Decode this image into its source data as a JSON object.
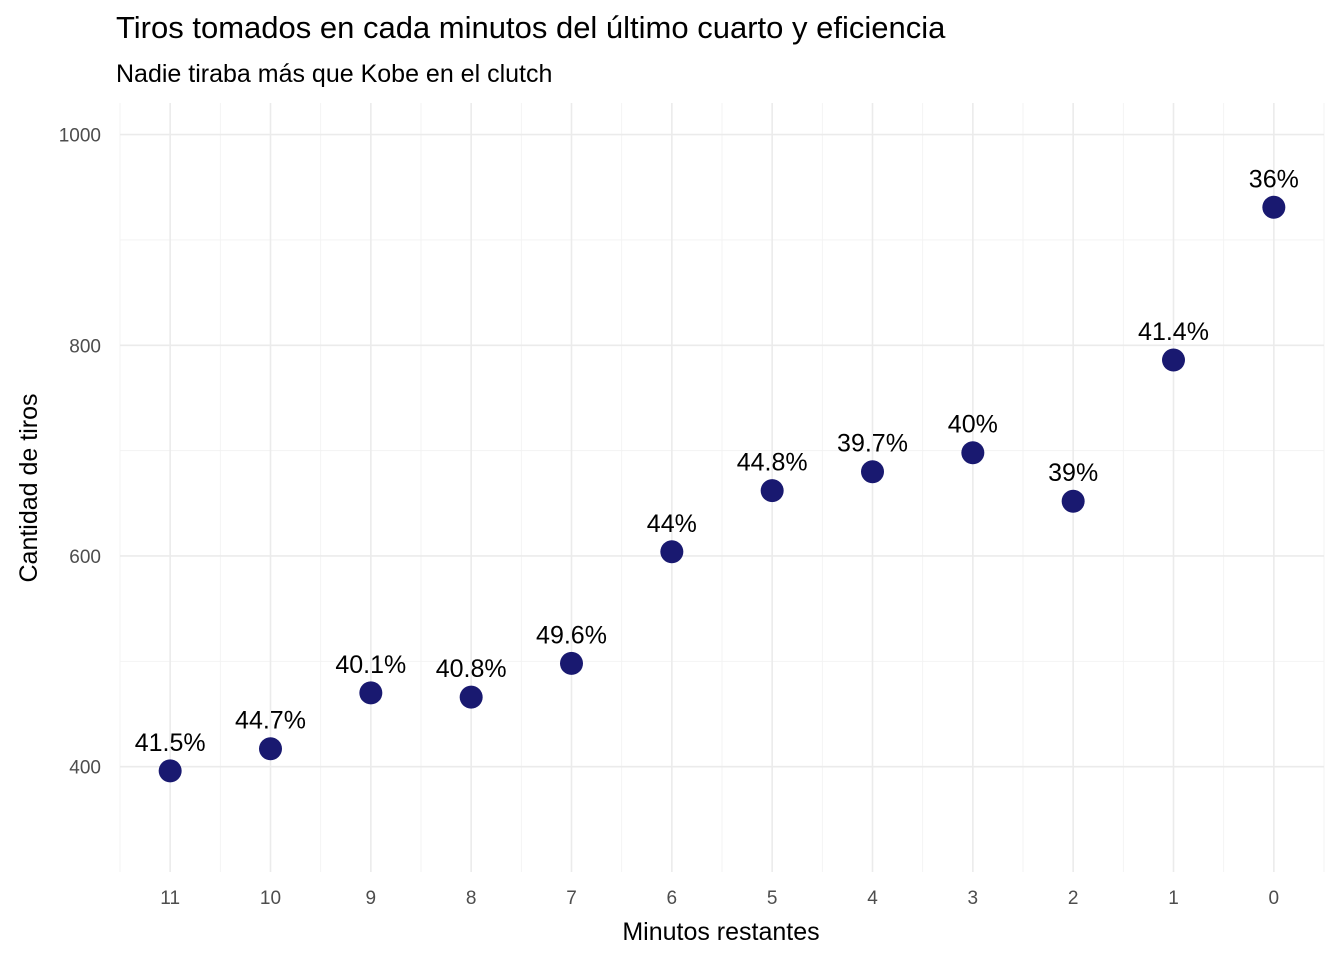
{
  "chart_data": {
    "type": "scatter",
    "title": "Tiros tomados en cada minutos del último cuarto y eficiencia",
    "subtitle": "Nadie tiraba más que Kobe en el clutch",
    "xlabel": "Minutos restantes",
    "ylabel": "Cantidad de tiros",
    "categories": [
      "11",
      "10",
      "9",
      "8",
      "7",
      "6",
      "5",
      "4",
      "3",
      "2",
      "1",
      "0"
    ],
    "values": [
      396,
      417,
      470,
      466,
      498,
      604,
      662,
      680,
      698,
      652,
      786,
      931
    ],
    "labels": [
      "41.5%",
      "44.7%",
      "40.1%",
      "40.8%",
      "49.6%",
      "44%",
      "44.8%",
      "39.7%",
      "40%",
      "39%",
      "41.4%",
      "36%"
    ],
    "ylim": [
      300,
      1030
    ],
    "yticks": [
      400,
      600,
      800,
      1000
    ],
    "grid": true,
    "legend": "none",
    "point_color": "#191970"
  }
}
